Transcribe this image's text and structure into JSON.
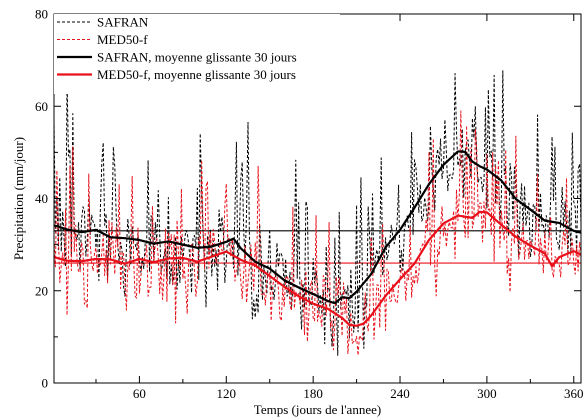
{
  "chart_data": {
    "type": "line",
    "xlabel": "Temps (jours de l'annee)",
    "ylabel": "Precipitation (mm/jour)",
    "xlim": [
      1,
      365
    ],
    "ylim": [
      0,
      80
    ],
    "xticks": [
      60,
      120,
      180,
      240,
      300,
      360
    ],
    "yticks": [
      0,
      20,
      40,
      60,
      80
    ],
    "grid": false,
    "legend_position": "top-left",
    "hlines": [
      {
        "value": 33.0,
        "color": "#000000"
      },
      {
        "value": 26.0,
        "color": "#e8101a"
      }
    ],
    "colors": {
      "black": "#000000",
      "red": "#e8101a"
    },
    "series": [
      {
        "name": "SAFRAN",
        "style": "dashed",
        "color": "#000000",
        "width": 1,
        "values": []
      },
      {
        "name": "MED50-f",
        "style": "dashed",
        "color": "#e8101a",
        "width": 1,
        "values": []
      },
      {
        "name": "SAFRAN, moyenne glissante 30 jours",
        "style": "solid",
        "color": "#000000",
        "width": 2.2,
        "x": [
          1,
          10,
          20,
          30,
          40,
          50,
          60,
          70,
          80,
          90,
          100,
          110,
          120,
          125,
          130,
          140,
          150,
          160,
          170,
          180,
          190,
          195,
          200,
          205,
          210,
          220,
          230,
          240,
          250,
          260,
          270,
          280,
          285,
          290,
          295,
          300,
          310,
          320,
          330,
          340,
          350,
          360,
          365
        ],
        "values": [
          34.2,
          33.3,
          32.7,
          33.2,
          31.6,
          31.4,
          31.0,
          30.2,
          30.7,
          30.0,
          29.3,
          29.6,
          30.6,
          31.3,
          29.2,
          26.3,
          24.8,
          22.3,
          20.7,
          19.3,
          17.8,
          17.3,
          18.6,
          18.4,
          19.8,
          23.6,
          29.4,
          33.2,
          38.0,
          43.1,
          47.3,
          50.2,
          50.1,
          48.0,
          47.0,
          46.3,
          43.9,
          39.9,
          37.6,
          35.2,
          34.7,
          33.0,
          32.6
        ]
      },
      {
        "name": "MED50-f, moyenne glissante 30 jours",
        "style": "solid",
        "color": "#e8101a",
        "width": 2.2,
        "x": [
          1,
          10,
          20,
          30,
          40,
          50,
          60,
          70,
          80,
          90,
          100,
          110,
          120,
          130,
          140,
          150,
          160,
          170,
          180,
          190,
          200,
          205,
          210,
          215,
          220,
          230,
          240,
          250,
          260,
          270,
          280,
          290,
          295,
          300,
          310,
          320,
          330,
          340,
          345,
          350,
          360,
          365
        ],
        "values": [
          27.3,
          26.5,
          26.4,
          26.9,
          26.8,
          25.9,
          26.9,
          26.2,
          27.0,
          27.1,
          26.3,
          27.4,
          28.5,
          26.7,
          25.5,
          23.2,
          20.9,
          18.8,
          17.2,
          16.1,
          14.1,
          12.6,
          12.4,
          12.9,
          14.6,
          18.9,
          22.5,
          25.9,
          31.0,
          34.6,
          36.3,
          35.8,
          37.1,
          37.0,
          34.3,
          31.7,
          29.8,
          28.1,
          25.3,
          27.3,
          28.6,
          27.8
        ]
      }
    ],
    "legend": [
      {
        "label": "SAFRAN",
        "style": "dashed",
        "color": "#000000",
        "width": 1
      },
      {
        "label": "MED50-f",
        "style": "dashed",
        "color": "#e8101a",
        "width": 1
      },
      {
        "label": "SAFRAN, moyenne glissante 30 jours",
        "style": "solid",
        "color": "#000000",
        "width": 2.2
      },
      {
        "label": "MED50-f, moyenne glissante 30 jours",
        "style": "solid",
        "color": "#e8101a",
        "width": 2.2
      }
    ]
  }
}
